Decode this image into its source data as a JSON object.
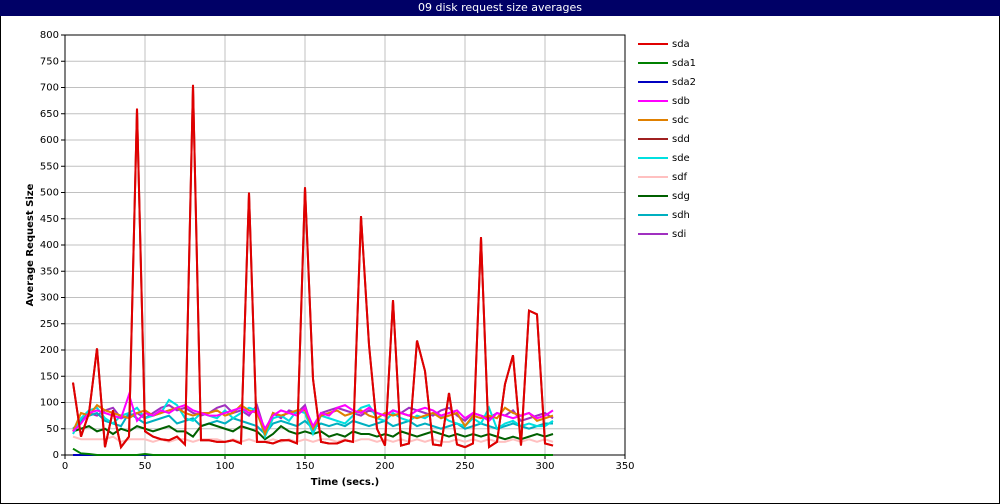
{
  "chart_data": {
    "type": "line",
    "title": "09 disk request size averages",
    "x_label": "Time (secs.)",
    "y_label": "Average Request Size",
    "xlim": [
      0,
      350
    ],
    "xticks": [
      0,
      50,
      100,
      150,
      200,
      250,
      300,
      350
    ],
    "ylim": [
      0,
      800
    ],
    "yticks": [
      0,
      50,
      100,
      150,
      200,
      250,
      300,
      350,
      400,
      450,
      500,
      550,
      600,
      650,
      700,
      750,
      800
    ],
    "grid": true,
    "legend": "right",
    "x": [
      5,
      10,
      15,
      20,
      25,
      30,
      35,
      40,
      45,
      50,
      55,
      60,
      65,
      70,
      75,
      80,
      85,
      90,
      95,
      100,
      105,
      110,
      115,
      120,
      125,
      130,
      135,
      140,
      145,
      150,
      155,
      160,
      165,
      170,
      175,
      180,
      185,
      190,
      195,
      200,
      205,
      210,
      215,
      220,
      225,
      230,
      235,
      240,
      245,
      250,
      255,
      260,
      265,
      270,
      275,
      280,
      285,
      290,
      295,
      300,
      305
    ],
    "series": [
      {
        "name": "sda",
        "color": "#e00000",
        "values": [
          138,
          35,
          80,
          203,
          15,
          85,
          15,
          35,
          660,
          45,
          35,
          30,
          28,
          35,
          20,
          705,
          28,
          28,
          25,
          25,
          28,
          22,
          500,
          25,
          25,
          22,
          28,
          28,
          22,
          510,
          145,
          25,
          22,
          22,
          28,
          25,
          455,
          210,
          50,
          18,
          295,
          18,
          22,
          218,
          160,
          20,
          18,
          118,
          20,
          15,
          22,
          415,
          15,
          25,
          135,
          190,
          18,
          275,
          268,
          22,
          18
        ]
      },
      {
        "name": "sda1",
        "color": "#008000",
        "values": [
          12,
          3,
          2,
          0,
          0,
          0,
          0,
          0,
          0,
          2,
          0,
          0,
          0,
          0,
          0,
          0,
          0,
          0,
          0,
          0,
          0,
          0,
          0,
          0,
          0,
          0,
          0,
          0,
          0,
          0,
          0,
          0,
          0,
          0,
          0,
          0,
          0,
          0,
          0,
          0,
          0,
          0,
          0,
          0,
          0,
          0,
          0,
          0,
          0,
          0,
          0,
          0,
          0,
          0,
          0,
          0,
          0,
          0,
          0,
          0,
          0
        ]
      },
      {
        "name": "sda2",
        "color": "#0000c0",
        "values": [
          0,
          0,
          0,
          0,
          0,
          0,
          0,
          0,
          0,
          0,
          0,
          0,
          0,
          0,
          0,
          0,
          0,
          0,
          0,
          0,
          0,
          0,
          0,
          0,
          0,
          0,
          0,
          0,
          0,
          0,
          0,
          0,
          0,
          0,
          0,
          0,
          0,
          0,
          0,
          0,
          0,
          0,
          0,
          0,
          0,
          0,
          0,
          0,
          0,
          0,
          0,
          0,
          0,
          0,
          0,
          0,
          0,
          0,
          0,
          0,
          0
        ]
      },
      {
        "name": "sdb",
        "color": "#ff00ff",
        "values": [
          45,
          60,
          80,
          85,
          80,
          75,
          70,
          115,
          65,
          80,
          75,
          85,
          80,
          90,
          95,
          85,
          80,
          75,
          75,
          80,
          85,
          90,
          80,
          85,
          50,
          75,
          85,
          80,
          75,
          90,
          55,
          80,
          75,
          90,
          95,
          85,
          80,
          90,
          80,
          75,
          85,
          80,
          75,
          85,
          90,
          85,
          75,
          80,
          85,
          70,
          80,
          75,
          65,
          80,
          75,
          70,
          75,
          80,
          70,
          75,
          85
        ]
      },
      {
        "name": "sdc",
        "color": "#e08000",
        "values": [
          45,
          80,
          75,
          95,
          85,
          80,
          75,
          70,
          80,
          85,
          75,
          80,
          85,
          90,
          80,
          75,
          80,
          80,
          85,
          75,
          80,
          95,
          85,
          80,
          40,
          80,
          75,
          80,
          85,
          85,
          50,
          75,
          80,
          85,
          75,
          80,
          85,
          75,
          70,
          80,
          75,
          80,
          75,
          70,
          75,
          80,
          70,
          75,
          80,
          55,
          75,
          70,
          75,
          70,
          90,
          80,
          75,
          80,
          65,
          70,
          75
        ]
      },
      {
        "name": "sdd",
        "color": "#a02020",
        "values": [
          138,
          35,
          80,
          203,
          15,
          85,
          15,
          35,
          660,
          45,
          35,
          30,
          28,
          35,
          20,
          705,
          28,
          28,
          25,
          25,
          28,
          22,
          500,
          25,
          25,
          22,
          28,
          28,
          22,
          510,
          145,
          25,
          22,
          22,
          28,
          25,
          455,
          210,
          50,
          18,
          295,
          18,
          22,
          218,
          160,
          20,
          18,
          118,
          20,
          15,
          22,
          415,
          15,
          25,
          135,
          190,
          18,
          275,
          268,
          22,
          18
        ]
      },
      {
        "name": "sde",
        "color": "#00e0e0",
        "values": [
          40,
          70,
          85,
          90,
          70,
          60,
          75,
          80,
          90,
          70,
          75,
          80,
          105,
          95,
          70,
          65,
          80,
          75,
          70,
          85,
          70,
          80,
          90,
          85,
          35,
          70,
          75,
          65,
          85,
          80,
          40,
          75,
          70,
          65,
          60,
          75,
          90,
          95,
          70,
          65,
          80,
          70,
          65,
          75,
          70,
          80,
          75,
          65,
          60,
          55,
          70,
          60,
          90,
          50,
          60,
          65,
          55,
          60,
          55,
          55,
          65
        ]
      },
      {
        "name": "sdf",
        "color": "#ffc0c0",
        "values": [
          35,
          30,
          30,
          30,
          30,
          35,
          25,
          30,
          30,
          30,
          25,
          30,
          25,
          30,
          30,
          25,
          30,
          30,
          30,
          25,
          30,
          25,
          30,
          25,
          25,
          30,
          25,
          30,
          25,
          30,
          25,
          30,
          30,
          25,
          30,
          25,
          30,
          30,
          25,
          30,
          25,
          30,
          25,
          30,
          25,
          30,
          25,
          25,
          30,
          25,
          30,
          25,
          30,
          25,
          25,
          30,
          25,
          30,
          25,
          30,
          25
        ]
      },
      {
        "name": "sdg",
        "color": "#006000",
        "values": [
          45,
          50,
          55,
          45,
          50,
          40,
          50,
          45,
          55,
          50,
          45,
          50,
          55,
          45,
          45,
          35,
          55,
          60,
          55,
          50,
          45,
          55,
          50,
          45,
          30,
          40,
          55,
          45,
          40,
          45,
          40,
          45,
          35,
          40,
          35,
          45,
          40,
          40,
          35,
          40,
          35,
          45,
          40,
          35,
          40,
          45,
          40,
          35,
          40,
          35,
          40,
          35,
          40,
          35,
          30,
          35,
          30,
          35,
          40,
          35,
          40
        ]
      },
      {
        "name": "sdh",
        "color": "#00b0c0",
        "values": [
          50,
          65,
          75,
          80,
          65,
          60,
          55,
          80,
          70,
          60,
          65,
          70,
          75,
          60,
          65,
          70,
          55,
          60,
          65,
          60,
          70,
          65,
          60,
          55,
          40,
          60,
          65,
          60,
          55,
          65,
          50,
          60,
          55,
          60,
          55,
          65,
          60,
          55,
          60,
          65,
          55,
          60,
          65,
          55,
          60,
          55,
          50,
          55,
          60,
          50,
          55,
          60,
          55,
          50,
          55,
          60,
          55,
          50,
          55,
          60,
          60
        ]
      },
      {
        "name": "sdi",
        "color": "#a030c0",
        "values": [
          45,
          65,
          80,
          75,
          85,
          90,
          70,
          75,
          80,
          70,
          80,
          90,
          95,
          85,
          90,
          80,
          75,
          80,
          90,
          95,
          80,
          85,
          75,
          95,
          45,
          80,
          70,
          85,
          80,
          95,
          45,
          80,
          85,
          90,
          85,
          80,
          75,
          85,
          80,
          75,
          85,
          80,
          90,
          85,
          80,
          75,
          85,
          90,
          75,
          65,
          80,
          75,
          70,
          80,
          75,
          85,
          65,
          70,
          75,
          80,
          70
        ]
      }
    ]
  }
}
